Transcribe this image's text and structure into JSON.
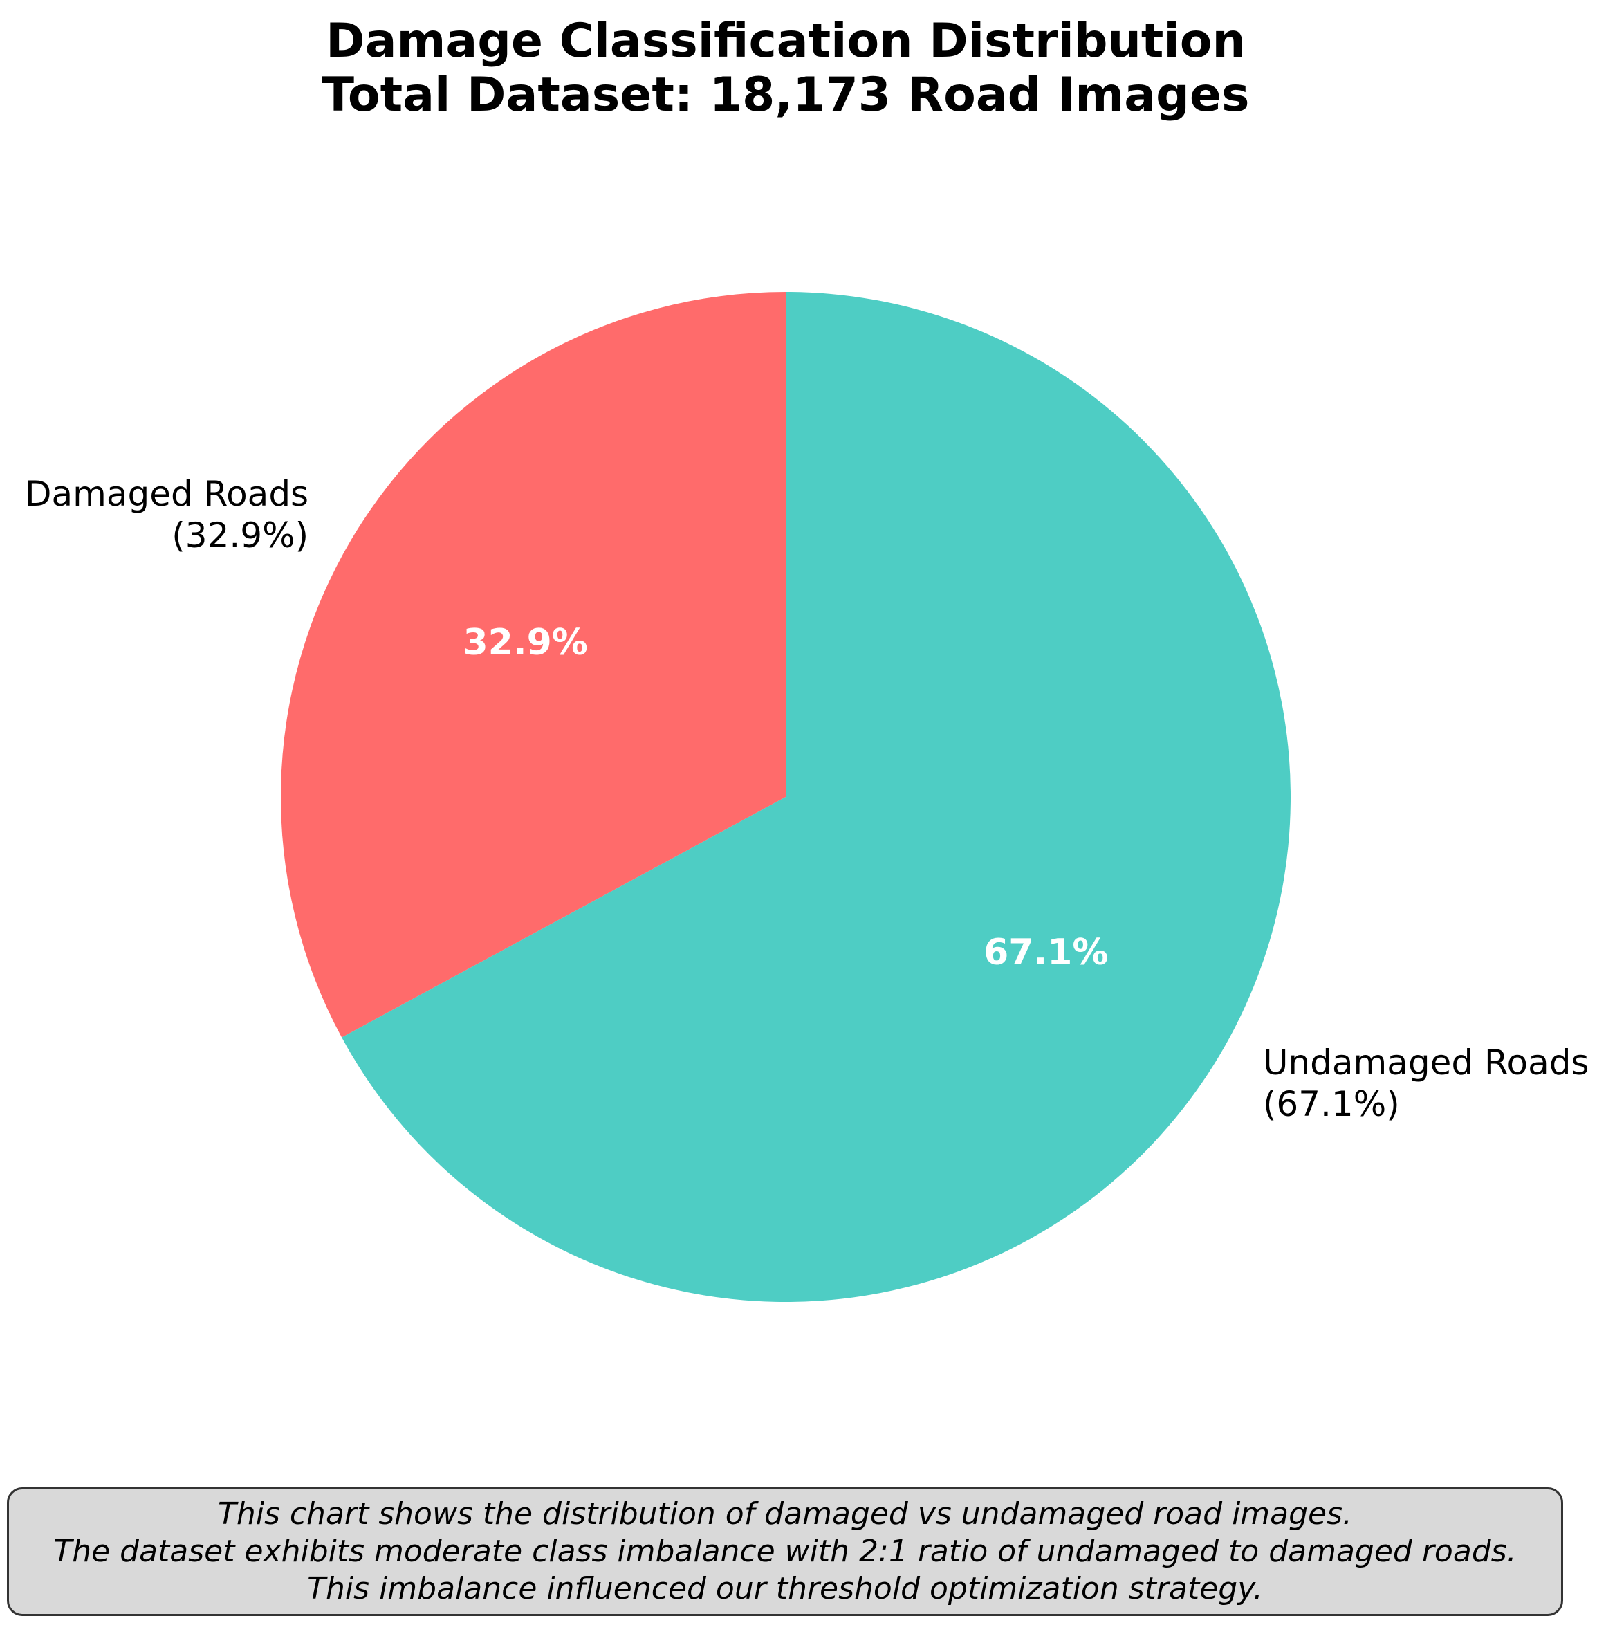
{
  "chart_data": {
    "type": "pie",
    "title": "Damage Classification Distribution",
    "subtitle": "Total Dataset: 18,173 Road Images",
    "start_angle_deg": 90,
    "direction": "counterclockwise",
    "slices": [
      {
        "label": "Damaged Roads",
        "outer_label": "(32.9%)",
        "value": 32.9,
        "inner_label": "32.9%",
        "color": "#ff6b6b"
      },
      {
        "label": "Undamaged Roads",
        "outer_label": "(67.1%)",
        "value": 67.1,
        "inner_label": "67.1%",
        "color": "#4ecdc4"
      }
    ]
  },
  "note": {
    "lines": [
      "This chart shows the distribution of damaged vs undamaged road images.",
      "The dataset exhibits moderate class imbalance with 2:1 ratio of undamaged to damaged roads.",
      "This imbalance influenced our threshold optimization strategy."
    ]
  }
}
